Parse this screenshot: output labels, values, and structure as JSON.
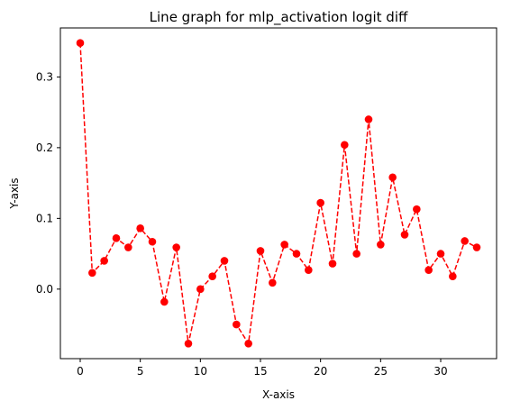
{
  "chart_data": {
    "type": "line",
    "title": "Line graph for mlp_activation logit diff",
    "xlabel": "X-axis",
    "ylabel": "Y-axis",
    "x": [
      0,
      1,
      2,
      3,
      4,
      5,
      6,
      7,
      8,
      9,
      10,
      11,
      12,
      13,
      14,
      15,
      16,
      17,
      18,
      19,
      20,
      21,
      22,
      23,
      24,
      25,
      26,
      27,
      28,
      29,
      30,
      31,
      32,
      33
    ],
    "series": [
      {
        "values": [
          0.348,
          0.023,
          0.04,
          0.072,
          0.059,
          0.086,
          0.067,
          -0.018,
          0.059,
          -0.077,
          0.0,
          0.018,
          0.04,
          -0.05,
          -0.077,
          0.054,
          0.009,
          0.063,
          0.05,
          0.027,
          0.122,
          0.036,
          0.204,
          0.05,
          0.24,
          0.063,
          0.158,
          0.077,
          0.113,
          0.027,
          0.05,
          0.018,
          0.068,
          0.059
        ],
        "color": "#ff0000",
        "line_style": "dashed",
        "marker": "circle"
      }
    ],
    "xlim": [
      -1.65,
      34.65
    ],
    "ylim": [
      -0.0983,
      0.3693
    ],
    "x_ticks": [
      0,
      5,
      10,
      15,
      20,
      25,
      30
    ],
    "y_ticks": [
      0.0,
      0.1,
      0.2,
      0.3
    ],
    "y_tick_labels": [
      "0.0",
      "0.1",
      "0.2",
      "0.3"
    ],
    "grid": false,
    "legend": "none"
  }
}
